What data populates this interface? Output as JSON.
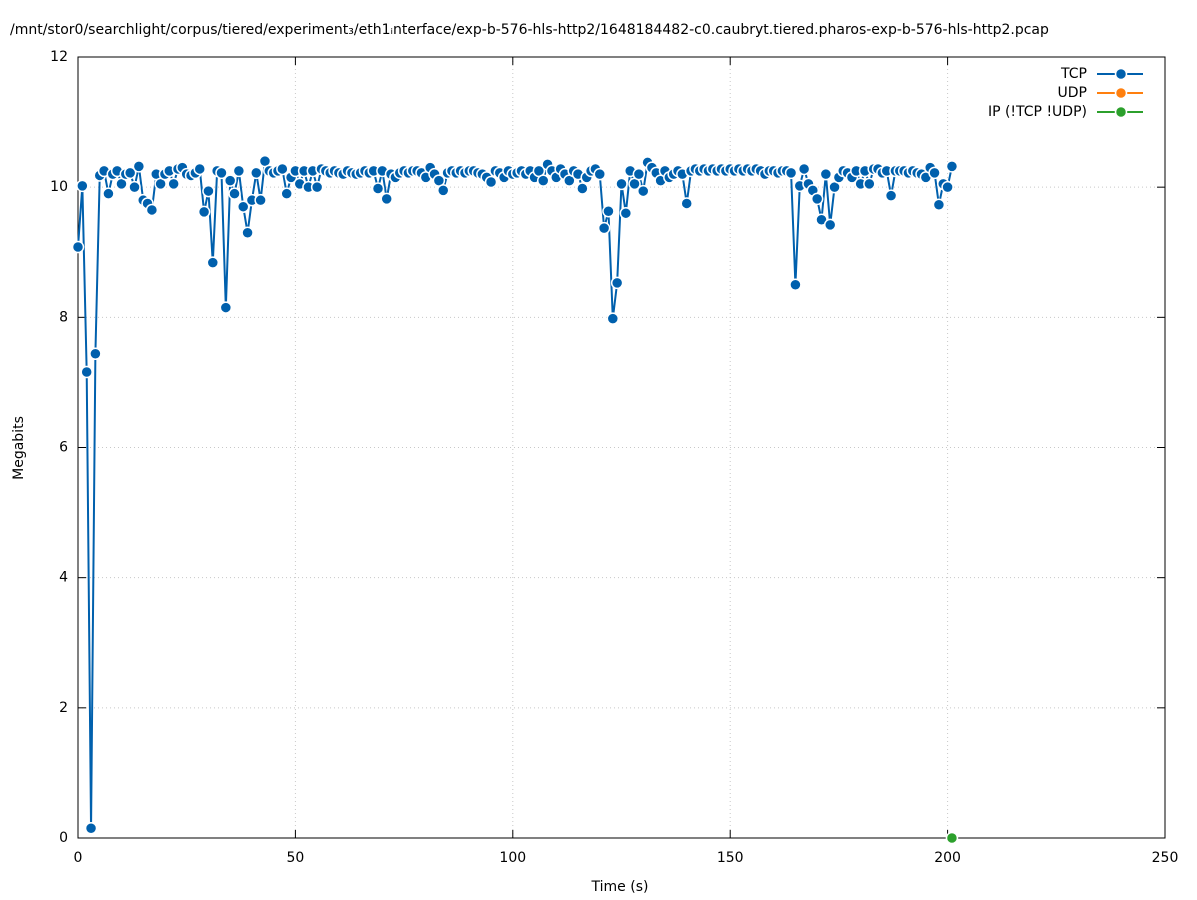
{
  "chart_data": {
    "type": "line",
    "title": "/mnt/stor0/searchlight/corpus/tiered/experiment₃/eth1ᵢnterface/exp-b-576-hls-http2/1648184482-c0.caubryt.tiered.pharos-exp-b-576-hls-http2.pcap",
    "xlabel": "Time (s)",
    "ylabel": "Megabits",
    "xlim": [
      0,
      250
    ],
    "xticks": [
      0,
      50,
      100,
      150,
      200,
      250
    ],
    "ylim": [
      0,
      12
    ],
    "yticks": [
      0,
      2,
      4,
      6,
      8,
      10,
      12
    ],
    "grid": true,
    "legend": "top right",
    "series": [
      {
        "name": "TCP",
        "color": "#0060ad",
        "x": [
          0,
          1,
          2,
          3,
          4,
          5,
          6,
          7,
          8,
          9,
          10,
          11,
          12,
          13,
          14,
          15,
          16,
          17,
          18,
          19,
          20,
          21,
          22,
          23,
          24,
          25,
          26,
          27,
          28,
          29,
          30,
          31,
          32,
          33,
          34,
          35,
          36,
          37,
          38,
          39,
          40,
          41,
          42,
          43,
          44,
          45,
          46,
          47,
          48,
          49,
          50,
          51,
          52,
          53,
          54,
          55,
          56,
          57,
          58,
          59,
          60,
          61,
          62,
          63,
          64,
          65,
          66,
          67,
          68,
          69,
          70,
          71,
          72,
          73,
          74,
          75,
          76,
          77,
          78,
          79,
          80,
          81,
          82,
          83,
          84,
          85,
          86,
          87,
          88,
          89,
          90,
          91,
          92,
          93,
          94,
          95,
          96,
          97,
          98,
          99,
          100,
          101,
          102,
          103,
          104,
          105,
          106,
          107,
          108,
          109,
          110,
          111,
          112,
          113,
          114,
          115,
          116,
          117,
          118,
          119,
          120,
          121,
          122,
          123,
          124,
          125,
          126,
          127,
          128,
          129,
          130,
          131,
          132,
          133,
          134,
          135,
          136,
          137,
          138,
          139,
          140,
          141,
          142,
          143,
          144,
          145,
          146,
          147,
          148,
          149,
          150,
          151,
          152,
          153,
          154,
          155,
          156,
          157,
          158,
          159,
          160,
          161,
          162,
          163,
          164,
          165,
          166,
          167,
          168,
          169,
          170,
          171,
          172,
          173,
          174,
          175,
          176,
          177,
          178,
          179,
          180,
          181,
          182,
          183,
          184,
          185,
          186,
          187,
          188,
          189,
          190,
          191,
          192,
          193,
          194,
          195,
          196,
          197,
          198,
          199,
          200,
          201
        ],
        "values": [
          9.08,
          10.02,
          7.16,
          0.15,
          7.44,
          10.18,
          10.25,
          9.9,
          10.2,
          10.25,
          10.05,
          10.2,
          10.22,
          10.0,
          10.32,
          9.8,
          9.75,
          9.65,
          10.2,
          10.05,
          10.2,
          10.25,
          10.05,
          10.28,
          10.3,
          10.2,
          10.18,
          10.22,
          10.28,
          9.62,
          9.94,
          8.84,
          10.25,
          10.22,
          8.15,
          10.1,
          9.9,
          10.25,
          9.7,
          9.3,
          9.8,
          10.22,
          9.8,
          10.4,
          10.25,
          10.22,
          10.25,
          10.28,
          9.9,
          10.15,
          10.25,
          10.05,
          10.25,
          10.0,
          10.25,
          10.0,
          10.28,
          10.25,
          10.22,
          10.25,
          10.22,
          10.2,
          10.25,
          10.22,
          10.2,
          10.22,
          10.25,
          10.22,
          10.25,
          9.98,
          10.25,
          9.82,
          10.2,
          10.15,
          10.22,
          10.25,
          10.22,
          10.25,
          10.25,
          10.22,
          10.15,
          10.3,
          10.2,
          10.1,
          9.95,
          10.22,
          10.25,
          10.22,
          10.25,
          10.22,
          10.25,
          10.25,
          10.22,
          10.2,
          10.15,
          10.08,
          10.25,
          10.22,
          10.15,
          10.25,
          10.2,
          10.22,
          10.25,
          10.2,
          10.25,
          10.15,
          10.25,
          10.1,
          10.35,
          10.25,
          10.15,
          10.28,
          10.2,
          10.1,
          10.25,
          10.2,
          9.98,
          10.15,
          10.25,
          10.28,
          10.2,
          9.37,
          9.63,
          7.98,
          8.53,
          10.05,
          9.6,
          10.25,
          10.05,
          10.2,
          9.94,
          10.38,
          10.3,
          10.22,
          10.1,
          10.25,
          10.15,
          10.2,
          10.25,
          10.2,
          9.75,
          10.25,
          10.28,
          10.25,
          10.28,
          10.25,
          10.28,
          10.25,
          10.28,
          10.25,
          10.28,
          10.25,
          10.28,
          10.25,
          10.28,
          10.25,
          10.28,
          10.25,
          10.2,
          10.25,
          10.25,
          10.22,
          10.25,
          10.25,
          10.22,
          8.5,
          10.02,
          10.28,
          10.05,
          9.95,
          9.82,
          9.5,
          10.2,
          9.42,
          10.0,
          10.15,
          10.25,
          10.22,
          10.15,
          10.25,
          10.05,
          10.25,
          10.05,
          10.28,
          10.28,
          10.22,
          10.25,
          9.87,
          10.25,
          10.25,
          10.25,
          10.22,
          10.25,
          10.22,
          10.2,
          10.15,
          10.3,
          10.22,
          9.73,
          10.05,
          10.0,
          10.32
        ]
      },
      {
        "name": "UDP",
        "color": "#ff7f0e",
        "x": [],
        "values": []
      },
      {
        "name": "IP (!TCP  !UDP)",
        "color": "#2ca02c",
        "x": [
          201
        ],
        "values": [
          0
        ]
      }
    ]
  }
}
